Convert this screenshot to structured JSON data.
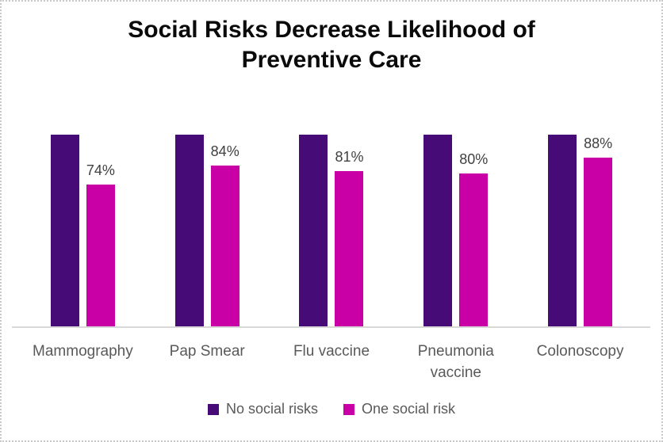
{
  "chart_data": {
    "type": "bar",
    "title": "Social Risks Decrease Likelihood of Preventive Care",
    "categories": [
      "Mammography",
      "Pap Smear",
      "Flu vaccine",
      "Pneumonia vaccine",
      "Colonoscopy"
    ],
    "series": [
      {
        "name": "No social risks",
        "color": "#470b77",
        "values": [
          100,
          100,
          100,
          100,
          100
        ],
        "data_labels": [
          "",
          "",
          "",
          "",
          ""
        ]
      },
      {
        "name": "One social risk",
        "color": "#c800a6",
        "values": [
          74,
          84,
          81,
          80,
          88
        ],
        "data_labels": [
          "74%",
          "84%",
          "81%",
          "80%",
          "88%"
        ]
      }
    ],
    "ylim": [
      0,
      100
    ],
    "grid": false,
    "y_axis_visible": false,
    "legend_position": "bottom",
    "colors": {
      "axis_line": "#d9d9d9",
      "data_label_text": "#404040",
      "category_text": "#595959",
      "title_text": "#0a0a0a"
    }
  }
}
